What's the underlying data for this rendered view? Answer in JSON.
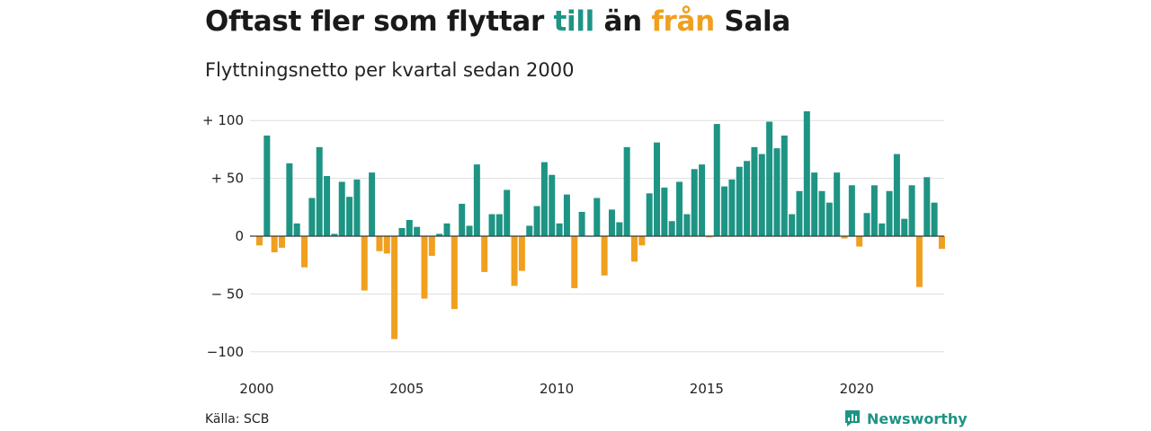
{
  "title": {
    "part1": "Oftast fler som flyttar ",
    "highlight_in": "till",
    "part2": " än ",
    "highlight_out": "från",
    "part3": " Sala"
  },
  "subtitle": "Flyttningsnetto per kvartal sedan 2000",
  "source": "Källa: SCB",
  "logo": {
    "text": "Newsworthy",
    "icon": "newsworthy-chart-icon"
  },
  "colors": {
    "positive": "#1e9484",
    "negative": "#f0a01e",
    "grid": "#dddddd",
    "zero": "#3a3a3a"
  },
  "chart_data": {
    "type": "bar",
    "title": "Oftast fler som flyttar till än från Sala",
    "subtitle": "Flyttningsnetto per kvartal sedan 2000",
    "xlabel": "",
    "ylabel": "",
    "start": "2000 Q1",
    "frequency": "quarterly",
    "ylim": [
      -100,
      110
    ],
    "yticks": [
      {
        "value": 100,
        "label": "+ 100"
      },
      {
        "value": 50,
        "label": "+  50"
      },
      {
        "value": 0,
        "label": "0"
      },
      {
        "value": -50,
        "label": "− 50"
      },
      {
        "value": -100,
        "label": "−100"
      }
    ],
    "xticks": [
      "2000",
      "2005",
      "2010",
      "2015",
      "2020"
    ],
    "grid": true,
    "series": [
      {
        "values": [
          -8,
          87,
          -14,
          -10,
          63,
          11,
          -27,
          33,
          77,
          52,
          2,
          47,
          34,
          49,
          -47,
          55,
          -13,
          -15,
          -89,
          7,
          14,
          8,
          -54,
          -17,
          2,
          11,
          -63,
          28,
          9,
          62,
          -31,
          19,
          19,
          40,
          -43,
          -30,
          9,
          26,
          64,
          53,
          11,
          36,
          -45,
          21,
          0,
          33,
          -34,
          23,
          12,
          77,
          -22,
          -8,
          37,
          81,
          42,
          13,
          47,
          19,
          58,
          62,
          -1,
          97,
          43,
          49,
          60,
          65,
          77,
          71,
          99,
          76,
          87,
          19,
          39,
          108,
          55,
          39,
          29,
          55,
          -2,
          44,
          -9,
          20,
          44,
          11,
          39,
          71,
          15,
          44,
          -44,
          51,
          29,
          -11
        ]
      }
    ]
  }
}
